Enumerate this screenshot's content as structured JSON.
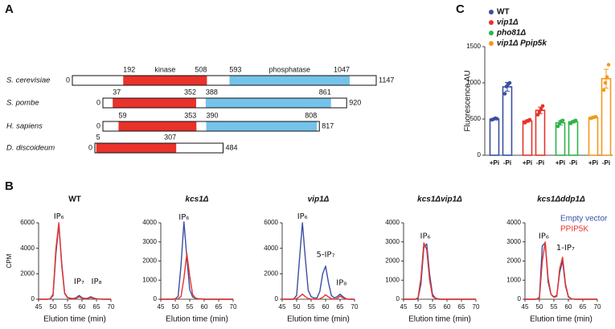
{
  "chart_data": [
    {
      "type": "domain",
      "panel": "A",
      "categories": [
        "S. cerevisiae",
        "S. pombe",
        "H. sapiens",
        "D. discoideum"
      ],
      "xlim": [
        0,
        1147
      ],
      "lengths": [
        1147,
        920,
        817,
        484
      ],
      "series": [
        {
          "name": "kinase",
          "color": "#e8322a",
          "starts": [
            192,
            37,
            59,
            5
          ],
          "values": [
            508,
            352,
            353,
            307
          ]
        },
        {
          "name": "phosphatase",
          "color": "#74c3ea",
          "starts": [
            593,
            388,
            390,
            null
          ],
          "values": [
            1047,
            861,
            808,
            null
          ]
        }
      ]
    },
    {
      "type": "line",
      "panel": "B",
      "title": "WT",
      "ylabel": "CPM",
      "xlabel": "Elution time (min)",
      "x": [
        45,
        46,
        47,
        48,
        49,
        50,
        51,
        52,
        53,
        54,
        55,
        56,
        57,
        58,
        59,
        60,
        61,
        62,
        63,
        64,
        65,
        66,
        67,
        68,
        69,
        70
      ],
      "xlim": [
        45,
        70
      ],
      "xticks": [
        45,
        50,
        55,
        60,
        65,
        70
      ],
      "ylim": [
        0,
        6000
      ],
      "yticks": [
        0,
        2000,
        4000,
        6000
      ],
      "annotations": [
        "IP₆",
        "IP₇",
        "IP₈"
      ],
      "series": [
        {
          "color": "#3a4ea3",
          "values": [
            0,
            0,
            0,
            0,
            30,
            300,
            3600,
            5900,
            2800,
            500,
            150,
            80,
            60,
            120,
            300,
            120,
            60,
            80,
            200,
            100,
            40,
            20,
            10,
            0,
            0,
            0
          ]
        },
        {
          "color": "#e8322a",
          "values": [
            0,
            0,
            0,
            0,
            40,
            400,
            4000,
            6000,
            2600,
            450,
            120,
            60,
            40,
            80,
            200,
            90,
            40,
            60,
            130,
            70,
            30,
            10,
            0,
            0,
            0,
            0
          ]
        }
      ]
    },
    {
      "type": "line",
      "title": "kcs1Δ",
      "xlabel": "Elution time (min)",
      "x": [
        45,
        46,
        47,
        48,
        49,
        50,
        51,
        52,
        53,
        54,
        55,
        56,
        57,
        58,
        59,
        60,
        61,
        62,
        63,
        64,
        65,
        66,
        67,
        68,
        69,
        70
      ],
      "xlim": [
        45,
        70
      ],
      "xticks": [
        45,
        50,
        55,
        60,
        65,
        70
      ],
      "ylim": [
        0,
        4000
      ],
      "yticks": [
        0,
        1000,
        2000,
        3000,
        4000
      ],
      "annotations": [
        "IP₆"
      ],
      "series": [
        {
          "color": "#3a4ea3",
          "values": [
            0,
            0,
            0,
            0,
            0,
            20,
            150,
            1800,
            4050,
            2200,
            500,
            120,
            50,
            30,
            20,
            10,
            0,
            0,
            0,
            0,
            0,
            0,
            0,
            0,
            0,
            0
          ]
        },
        {
          "color": "#e8322a",
          "values": [
            0,
            0,
            0,
            0,
            0,
            0,
            20,
            150,
            1100,
            2400,
            1200,
            250,
            60,
            20,
            10,
            0,
            0,
            0,
            0,
            0,
            0,
            0,
            0,
            0,
            0,
            0
          ]
        }
      ]
    },
    {
      "type": "line",
      "title": "vip1Δ",
      "xlabel": "Elution time (min)",
      "x": [
        45,
        46,
        47,
        48,
        49,
        50,
        51,
        52,
        53,
        54,
        55,
        56,
        57,
        58,
        59,
        60,
        61,
        62,
        63,
        64,
        65,
        66,
        67,
        68,
        69,
        70
      ],
      "xlim": [
        45,
        70
      ],
      "xticks": [
        45,
        50,
        55,
        60,
        65,
        70
      ],
      "ylim": [
        0,
        6000
      ],
      "yticks": [
        0,
        2000,
        4000,
        6000
      ],
      "annotations": [
        "IP₆",
        "5-IP₇",
        "IP₈"
      ],
      "series": [
        {
          "color": "#3a4ea3",
          "values": [
            0,
            0,
            0,
            0,
            30,
            300,
            3200,
            6000,
            3200,
            700,
            200,
            100,
            100,
            600,
            2000,
            2600,
            1300,
            300,
            100,
            200,
            400,
            200,
            50,
            0,
            0,
            0
          ]
        },
        {
          "color": "#e8322a",
          "values": [
            0,
            0,
            0,
            0,
            0,
            50,
            200,
            400,
            200,
            60,
            20,
            0,
            0,
            30,
            150,
            350,
            180,
            40,
            0,
            60,
            250,
            120,
            20,
            0,
            0,
            0
          ]
        }
      ]
    },
    {
      "type": "line",
      "title": "kcs1Δvip1Δ",
      "xlabel": "Elution time (min)",
      "x": [
        45,
        46,
        47,
        48,
        49,
        50,
        51,
        52,
        53,
        54,
        55,
        56,
        57,
        58,
        59,
        60,
        61,
        62,
        63,
        64,
        65,
        66,
        67,
        68,
        69,
        70
      ],
      "xlim": [
        45,
        70
      ],
      "xticks": [
        45,
        50,
        55,
        60,
        65,
        70
      ],
      "ylim": [
        0,
        4000
      ],
      "yticks": [
        0,
        1000,
        2000,
        3000,
        4000
      ],
      "annotations": [
        "IP₆"
      ],
      "series": [
        {
          "color": "#3a4ea3",
          "values": [
            0,
            0,
            0,
            0,
            0,
            50,
            800,
            2700,
            2900,
            1300,
            250,
            60,
            20,
            0,
            0,
            0,
            0,
            0,
            0,
            0,
            0,
            0,
            0,
            0,
            0,
            0
          ]
        },
        {
          "color": "#e8322a",
          "values": [
            0,
            0,
            0,
            0,
            0,
            80,
            1100,
            2950,
            2600,
            1000,
            150,
            40,
            0,
            0,
            0,
            0,
            0,
            0,
            0,
            0,
            0,
            0,
            0,
            0,
            0,
            0
          ]
        }
      ]
    },
    {
      "type": "line",
      "title": "kcs1Δddp1Δ",
      "xlabel": "Elution time (min)",
      "x": [
        45,
        46,
        47,
        48,
        49,
        50,
        51,
        52,
        53,
        54,
        55,
        56,
        57,
        58,
        59,
        60,
        61,
        62,
        63,
        64,
        65,
        66,
        67,
        68,
        69,
        70
      ],
      "xlim": [
        45,
        70
      ],
      "xticks": [
        45,
        50,
        55,
        60,
        65,
        70
      ],
      "ylim": [
        0,
        4000
      ],
      "yticks": [
        0,
        1000,
        2000,
        3000,
        4000
      ],
      "annotations": [
        "IP₆",
        "1-IP₇"
      ],
      "series": [
        {
          "name": "Empty vector",
          "color": "#3a4ea3",
          "values": [
            0,
            0,
            0,
            0,
            0,
            100,
            2800,
            2950,
            900,
            250,
            120,
            200,
            1400,
            2000,
            700,
            120,
            30,
            0,
            0,
            0,
            0,
            0,
            0,
            0,
            0,
            0
          ]
        },
        {
          "name": "PPIP5K",
          "color": "#e8322a",
          "values": [
            0,
            0,
            0,
            0,
            0,
            60,
            2000,
            3000,
            1100,
            250,
            100,
            150,
            1600,
            2200,
            800,
            150,
            30,
            0,
            0,
            0,
            0,
            0,
            0,
            0,
            0,
            0
          ]
        }
      ]
    },
    {
      "type": "bar",
      "panel": "C",
      "ylabel": "Fluorescence AU",
      "categories": [
        "+Pi",
        "-Pi"
      ],
      "ylim": [
        0,
        1500
      ],
      "yticks": [
        0,
        500,
        1000,
        1500
      ],
      "series": [
        {
          "name": "WT",
          "color": "#3a4ea3",
          "values": [
            500,
            945
          ],
          "errors": [
            10,
            60
          ],
          "points": [
            [
              490,
              500,
              510,
              505
            ],
            [
              850,
              950,
              980,
              1000
            ]
          ]
        },
        {
          "name": "vip1Δ",
          "color": "#e8322a",
          "values": [
            472,
            620
          ],
          "errors": [
            15,
            45
          ],
          "points": [
            [
              450,
              470,
              480,
              490
            ],
            [
              560,
              600,
              640,
              680
            ]
          ]
        },
        {
          "name": "pho81Δ",
          "color": "#2fb34a",
          "values": [
            448,
            462
          ],
          "errors": [
            30,
            15
          ],
          "points": [
            [
              400,
              440,
              470,
              480
            ],
            [
              440,
              460,
              470,
              480
            ]
          ]
        },
        {
          "name": "vip1Δ Ppip5k",
          "color": "#f39a1e",
          "values": [
            521,
            1058
          ],
          "errors": [
            8,
            130
          ],
          "points": [
            [
              510,
              520,
              525,
              530
            ],
            [
              900,
              1000,
              1080,
              1250
            ]
          ]
        }
      ]
    }
  ]
}
